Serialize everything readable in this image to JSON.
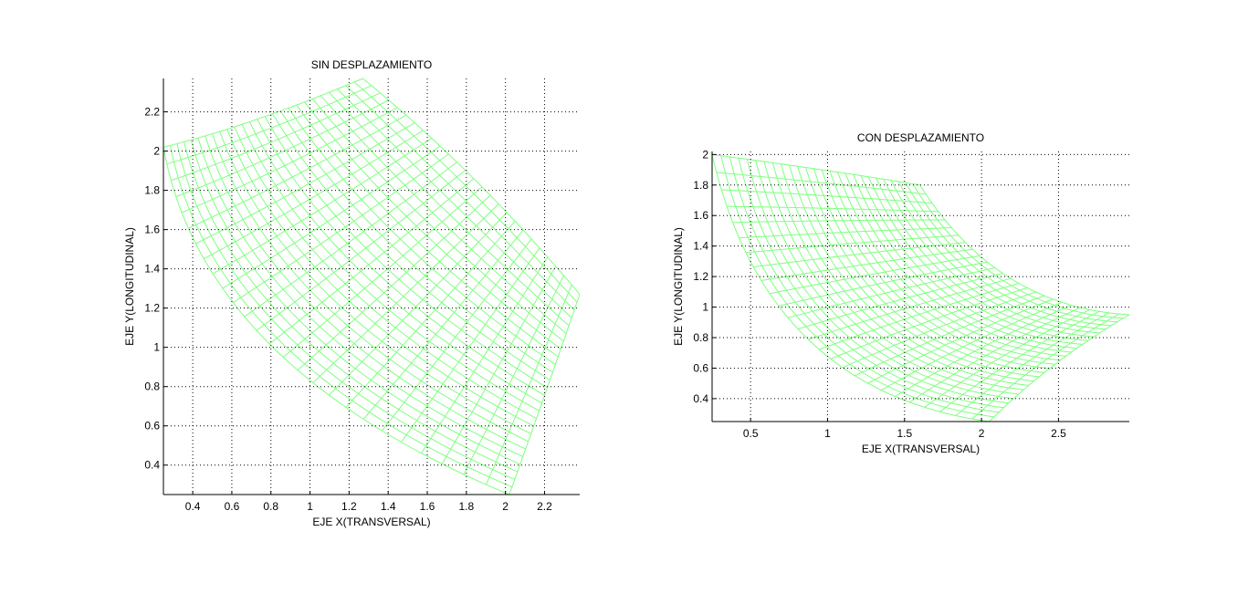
{
  "chart_data": [
    {
      "type": "mesh",
      "title": "SIN DESPLAZAMIENTO",
      "xlabel": "EJE X(TRANSVERSAL)",
      "ylabel": "EJE Y(LONGITUDINAL)",
      "xlim": [
        0.25,
        2.38
      ],
      "ylim": [
        0.25,
        2.37
      ],
      "xticks": [
        0.4,
        0.6,
        0.8,
        1,
        1.2,
        1.4,
        1.6,
        1.8,
        2,
        2.2
      ],
      "xtick_labels": [
        "0.4",
        "0.6",
        "0.8",
        "1",
        "1.2",
        "1.4",
        "1.6",
        "1.8",
        "2",
        "2.2"
      ],
      "yticks": [
        0.4,
        0.6,
        0.8,
        1,
        1.2,
        1.4,
        1.6,
        1.8,
        2,
        2.2
      ],
      "ytick_labels": [
        "0.4",
        "0.6",
        "0.8",
        "1",
        "1.2",
        "1.4",
        "1.6",
        "1.8",
        "2",
        "2.2"
      ],
      "grid": true,
      "mesh_color": "#7fff7f",
      "mesh_rows": 26,
      "mesh_cols": 26,
      "corners": {
        "top_left": [
          0.25,
          2.02
        ],
        "top_right": [
          1.27,
          2.37
        ],
        "bottom_right": [
          2.38,
          1.27
        ],
        "bottom_left": [
          2.02,
          0.25
        ]
      },
      "edge_control_points": {
        "top": [
          0.7,
          2.13
        ],
        "right": [
          1.85,
          1.9
        ],
        "bottom": [
          2.2,
          0.75
        ],
        "left": [
          0.45,
          0.9
        ]
      }
    },
    {
      "type": "mesh",
      "title": "CON DESPLAZAMIENTO",
      "xlabel": "EJE X(TRANSVERSAL)",
      "ylabel": "EJE Y(LONGITUDINAL)",
      "xlim": [
        0.25,
        2.96
      ],
      "ylim": [
        0.25,
        2.02
      ],
      "xticks": [
        0.5,
        1,
        1.5,
        2,
        2.5
      ],
      "xtick_labels": [
        "0.5",
        "1",
        "1.5",
        "2",
        "2.5"
      ],
      "yticks": [
        0.4,
        0.6,
        0.8,
        1,
        1.2,
        1.4,
        1.6,
        1.8,
        2
      ],
      "ytick_labels": [
        "0.4",
        "0.6",
        "0.8",
        "1",
        "1.2",
        "1.4",
        "1.6",
        "1.8",
        "2"
      ],
      "grid": true,
      "mesh_color": "#7fff7f",
      "mesh_rows": 26,
      "mesh_cols": 26,
      "corners": {
        "top_left": [
          0.25,
          2.0
        ],
        "top_right": [
          1.6,
          1.8
        ],
        "bottom_right": [
          2.96,
          0.95
        ],
        "bottom_left": [
          2.05,
          0.25
        ]
      },
      "edge_control_points": {
        "top": [
          1.0,
          1.9
        ],
        "right": [
          2.1,
          1.0
        ],
        "bottom": [
          2.45,
          0.65
        ],
        "left": [
          0.6,
          0.45
        ]
      }
    }
  ]
}
